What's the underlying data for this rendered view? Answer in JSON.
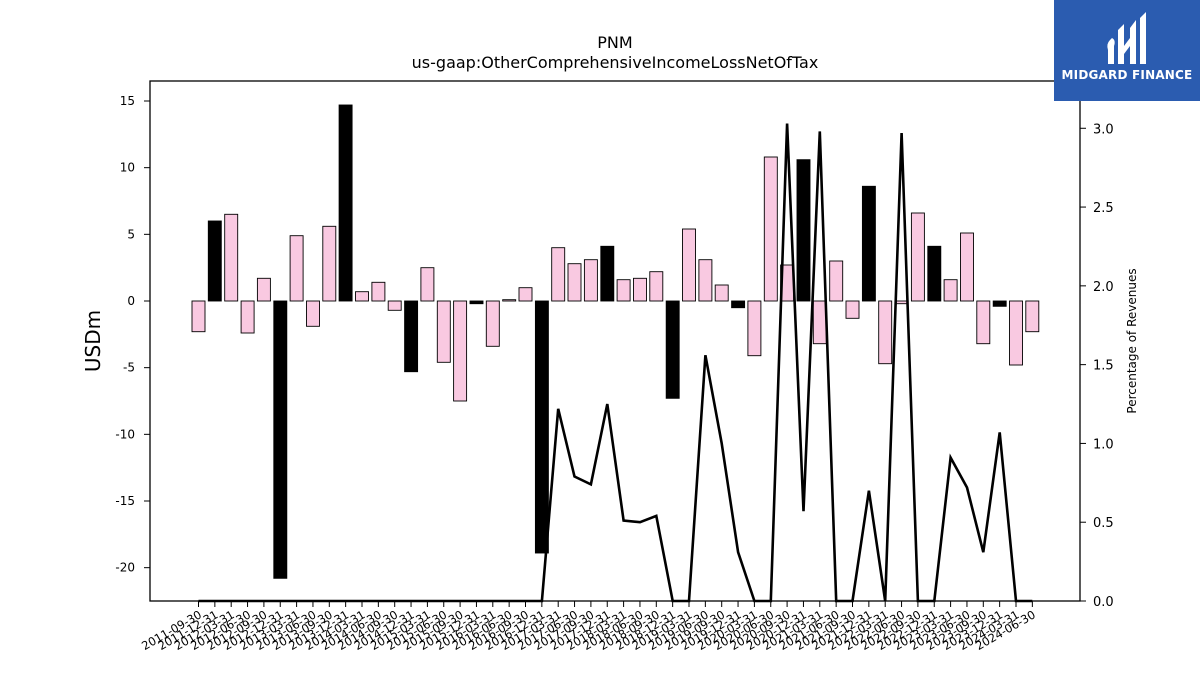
{
  "logo": {
    "text": "MIDGARD FINANCE",
    "background": "#2b5cb0"
  },
  "chart_data": {
    "type": "bar",
    "title": "PNM",
    "subtitle": "us-gaap:OtherComprehensiveIncomeLossNetOfTax",
    "ylabel": "USDm",
    "y2label": "Percentage of Revenues",
    "ylim": [
      -22.5,
      16.5
    ],
    "y2lim": [
      0.0,
      3.3
    ],
    "yticks": [
      -20,
      -15,
      -10,
      -5,
      0,
      5,
      10,
      15
    ],
    "y2ticks": [
      "0.0",
      "0.5",
      "1.0",
      "1.5",
      "2.0",
      "2.5",
      "3.0"
    ],
    "colors": {
      "positive": "#f9c9e1",
      "negative": "#000000",
      "line": "#000000"
    },
    "categories": [
      "2011-09-30",
      "2011-12-31",
      "2012-03-31",
      "2012-06-30",
      "2012-09-30",
      "2012-12-31",
      "2013-03-31",
      "2013-06-30",
      "2013-09-30",
      "2013-12-31",
      "2014-03-31",
      "2014-06-30",
      "2014-09-30",
      "2014-12-31",
      "2015-03-31",
      "2015-06-30",
      "2015-09-30",
      "2015-12-31",
      "2016-03-31",
      "2016-06-30",
      "2016-09-30",
      "2016-12-31",
      "2017-03-31",
      "2017-06-30",
      "2017-09-30",
      "2017-12-31",
      "2018-03-31",
      "2018-06-30",
      "2018-09-30",
      "2018-12-31",
      "2019-03-31",
      "2019-06-30",
      "2019-09-30",
      "2019-12-31",
      "2020-03-31",
      "2020-06-30",
      "2020-09-30",
      "2020-12-31",
      "2021-03-31",
      "2021-06-30",
      "2021-09-30",
      "2021-12-31",
      "2022-03-31",
      "2022-06-30",
      "2022-09-30",
      "2022-12-31",
      "2023-03-31",
      "2023-06-30",
      "2023-09-30",
      "2023-12-31",
      "2024-03-31",
      "2024-06-30"
    ],
    "x_tick_labels": [
      "2011-09-30",
      "2011-12-31",
      "2012-03-31",
      "2012-06-30",
      "2012-09-30",
      "2012-12-31",
      "2013-03-31",
      "2013-06-30",
      "2013-09-30",
      "2013-12-31",
      "2014-03-31",
      "2014-06-30",
      "2014-09-30",
      "2014-12-31",
      "2015-03-31",
      "2015-06-30",
      "2015-09-30",
      "2015-12-31",
      "2016-03-31",
      "2016-06-30",
      "2016-09-30",
      "2016-12-31",
      "2017-03-31",
      "2017-06-30",
      "2017-09-30",
      "2017-12-31",
      "2018-03-31",
      "2018-06-30",
      "2018-09-30",
      "2018-12-31",
      "2019-03-31",
      "2019-06-30",
      "2019-09-30",
      "2019-12-31",
      "2020-03-31",
      "2020-06-30",
      "2020-09-30",
      "2020-12-31",
      "2021-03-31",
      "2021-06-30",
      "2021-09-30",
      "2021-12-31",
      "2022-03-31",
      "2022-06-30",
      "2022-09-30",
      "2022-12-31",
      "2023-03-31",
      "2023-06-30",
      "2023-09-30",
      "2023-12-31",
      "2024-03-31",
      "2024-06-30"
    ],
    "series": [
      {
        "type": "bar",
        "axis": "left",
        "values": [
          -2.3,
          6.0,
          6.5,
          -2.4,
          1.7,
          -20.8,
          4.9,
          -1.9,
          5.6,
          14.7,
          0.7,
          1.4,
          -0.7,
          -5.3,
          2.5,
          -4.6,
          -7.5,
          -0.2,
          -3.4,
          0.1,
          1.0,
          -18.9,
          4.0,
          2.8,
          3.1,
          4.1,
          1.6,
          1.7,
          2.2,
          -7.3,
          5.4,
          3.1,
          1.2,
          -0.5,
          -4.1,
          10.8,
          2.7,
          10.6,
          -3.2,
          3.0,
          -1.3,
          8.6,
          -4.7,
          -0.2,
          6.6,
          4.1,
          1.6,
          5.1,
          -3.2,
          -0.4,
          -4.8,
          -2.3
        ],
        "highlight": [
          false,
          true,
          false,
          false,
          false,
          true,
          false,
          false,
          false,
          true,
          false,
          false,
          false,
          true,
          false,
          false,
          false,
          true,
          false,
          false,
          false,
          true,
          false,
          false,
          false,
          true,
          false,
          false,
          false,
          true,
          false,
          false,
          false,
          true,
          false,
          false,
          false,
          true,
          false,
          false,
          false,
          true,
          false,
          false,
          false,
          true,
          false,
          false,
          false,
          true,
          false,
          false
        ]
      },
      {
        "type": "line",
        "axis": "right",
        "values": [
          0,
          0,
          0,
          0,
          0,
          0,
          0,
          0,
          0,
          0,
          0,
          0,
          0,
          0,
          0,
          0,
          0,
          0,
          0,
          0,
          0,
          0,
          1.22,
          0.79,
          0.74,
          1.25,
          0.51,
          0.5,
          0.54,
          0,
          0,
          1.56,
          1.0,
          0.31,
          0,
          0,
          3.03,
          0.57,
          2.98,
          0,
          0,
          0.7,
          0,
          2.97,
          0,
          0,
          0.91,
          0.72,
          0.31,
          1.07,
          0,
          0
        ]
      }
    ]
  }
}
